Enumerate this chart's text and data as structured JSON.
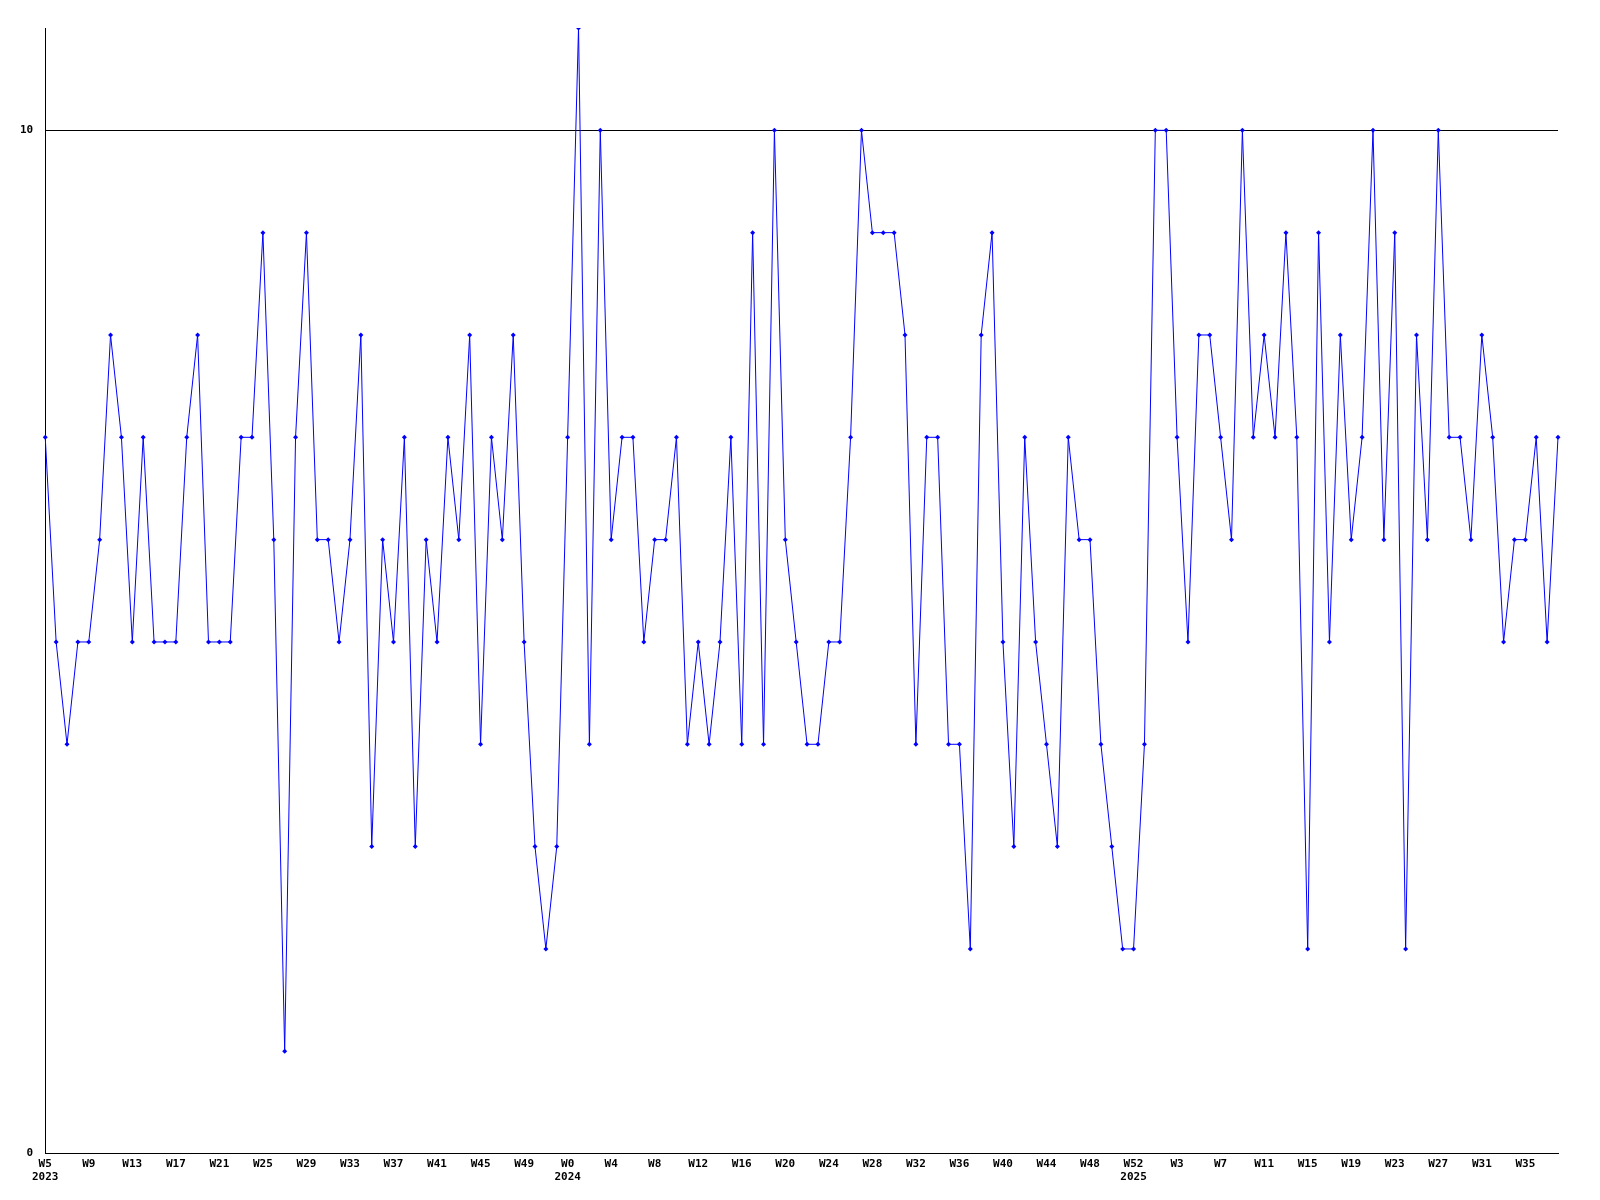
{
  "chart_data": {
    "type": "line",
    "categories": [
      "W5\n2023",
      null,
      null,
      null,
      "W9",
      null,
      null,
      null,
      "W13",
      null,
      null,
      null,
      "W17",
      null,
      null,
      null,
      "W21",
      null,
      null,
      null,
      "W25",
      null,
      null,
      null,
      "W29",
      null,
      null,
      null,
      "W33",
      null,
      null,
      null,
      "W37",
      null,
      null,
      null,
      "W41",
      null,
      null,
      null,
      "W45",
      null,
      null,
      null,
      "W49",
      null,
      null,
      null,
      "W0\n2024",
      null,
      null,
      null,
      "W4",
      null,
      null,
      null,
      "W8",
      null,
      null,
      null,
      "W12",
      null,
      null,
      null,
      "W16",
      null,
      null,
      null,
      "W20",
      null,
      null,
      null,
      "W24",
      null,
      null,
      null,
      "W28",
      null,
      null,
      null,
      "W32",
      null,
      null,
      null,
      "W36",
      null,
      null,
      null,
      "W40",
      null,
      null,
      null,
      "W44",
      null,
      null,
      null,
      "W48",
      null,
      null,
      null,
      "W52\n2025",
      null,
      null,
      null,
      "W3",
      null,
      null,
      null,
      "W7",
      null,
      null,
      null,
      "W11",
      null,
      null,
      null,
      "W15",
      null,
      null,
      null,
      "W19",
      null,
      null,
      null,
      "W23",
      null,
      null,
      null,
      "W27",
      null,
      null,
      null,
      "W31",
      null,
      null,
      null,
      "W35",
      null,
      null,
      null
    ],
    "series": [
      {
        "color": "#0000ff",
        "values": [
          7,
          5,
          4,
          5,
          5,
          6,
          8,
          7,
          5,
          7,
          5,
          5,
          5,
          7,
          8,
          5,
          5,
          5,
          7,
          7,
          9,
          6,
          1,
          7,
          9,
          6,
          6,
          5,
          6,
          8,
          3,
          6,
          5,
          7,
          3,
          6,
          5,
          7,
          6,
          8,
          4,
          7,
          6,
          8,
          5,
          3,
          2,
          3,
          7,
          11,
          4,
          10,
          6,
          7,
          7,
          5,
          6,
          6,
          7,
          4,
          5,
          4,
          5,
          7,
          4,
          9,
          4,
          10,
          6,
          5,
          4,
          4,
          5,
          5,
          7,
          10,
          9,
          9,
          9,
          8,
          4,
          7,
          7,
          4,
          4,
          2,
          8,
          9,
          5,
          3,
          7,
          5,
          4,
          3,
          7,
          6,
          6,
          4,
          3,
          2,
          2,
          4,
          10,
          10,
          7,
          5,
          8,
          8,
          7,
          6,
          10,
          7,
          8,
          7,
          9,
          7,
          2,
          9,
          5,
          8,
          6,
          7,
          10,
          6,
          9,
          2,
          8,
          6,
          10,
          7,
          7,
          6,
          8,
          7,
          5,
          6,
          6,
          7,
          5,
          7
        ]
      }
    ],
    "ylim": [
      0,
      11
    ],
    "yticks": [
      0,
      10
    ],
    "grid": "y",
    "marker": "diamond",
    "line_style": "solid"
  }
}
